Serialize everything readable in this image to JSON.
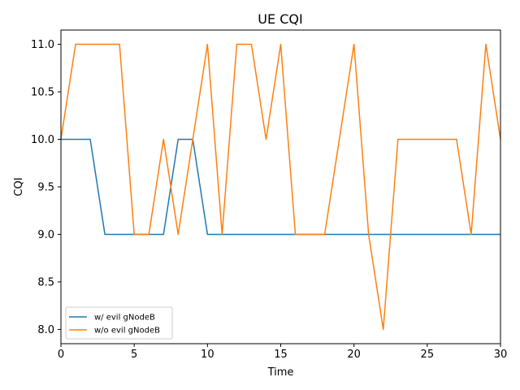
{
  "chart_data": {
    "type": "line",
    "title": "UE CQI",
    "xlabel": "Time",
    "ylabel": "CQI",
    "xlim": [
      0,
      30
    ],
    "ylim": [
      7.85,
      11.15
    ],
    "xticks": [
      0,
      5,
      10,
      15,
      20,
      25,
      30
    ],
    "yticks": [
      "8.0",
      "8.5",
      "9.0",
      "9.5",
      "10.0",
      "10.5",
      "11.0"
    ],
    "grid": false,
    "legend_position": "lower-left",
    "x": [
      0,
      1,
      2,
      3,
      4,
      5,
      6,
      7,
      8,
      9,
      10,
      11,
      12,
      13,
      14,
      15,
      16,
      17,
      18,
      19,
      20,
      21,
      22,
      23,
      24,
      25,
      26,
      27,
      28,
      29,
      30
    ],
    "series": [
      {
        "name": "w/ evil gNodeB",
        "color": "#1f77b4",
        "values": [
          10,
          10,
          10,
          9,
          9,
          9,
          9,
          9,
          10,
          10,
          9,
          9,
          9,
          9,
          9,
          9,
          9,
          9,
          9,
          9,
          9,
          9,
          9,
          9,
          9,
          9,
          9,
          9,
          9,
          9,
          9
        ]
      },
      {
        "name": "w/o evil gNodeB",
        "color": "#ff7f0e",
        "values": [
          10,
          11,
          11,
          11,
          11,
          9,
          9,
          10,
          9,
          10,
          11,
          9,
          11,
          11,
          10,
          11,
          9,
          9,
          9,
          10,
          11,
          9,
          8,
          10,
          10,
          10,
          10,
          10,
          9,
          11,
          10
        ]
      }
    ]
  }
}
